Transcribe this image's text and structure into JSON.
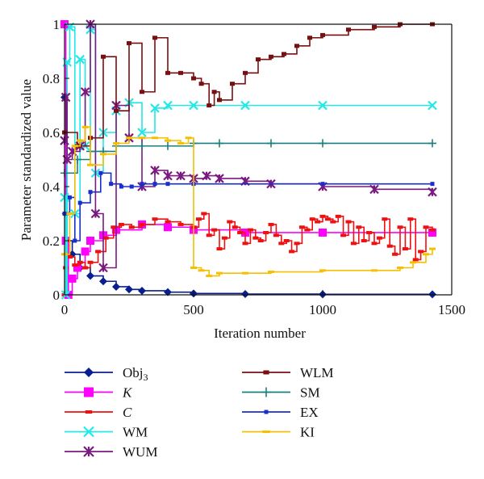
{
  "chart_data": {
    "type": "line",
    "xlabel": "Iteration number",
    "ylabel": "Parameter standardized value",
    "xlim": [
      0,
      1500
    ],
    "ylim": [
      0,
      1
    ],
    "xticks": [
      {
        "v": 0,
        "label": "0"
      },
      {
        "v": 500,
        "label": "500"
      },
      {
        "v": 1000,
        "label": "1000"
      },
      {
        "v": 1500,
        "label": "1500"
      }
    ],
    "yticks": [
      {
        "v": 0,
        "label": "0"
      },
      {
        "v": 0.2,
        "label": "0.2"
      },
      {
        "v": 0.4,
        "label": "0.4"
      },
      {
        "v": 0.6,
        "label": "0.6"
      },
      {
        "v": 0.8,
        "label": "0.8"
      },
      {
        "v": 1,
        "label": "1"
      }
    ],
    "grid": false,
    "legend_position": "below",
    "series": [
      {
        "name": "Obj",
        "sub": "3",
        "italic": false,
        "color": "#0a1f8f",
        "marker": "diamond",
        "x": [
          0,
          5,
          10,
          30,
          60,
          100,
          150,
          200,
          250,
          300,
          400,
          500,
          700,
          1000,
          1425
        ],
        "y": [
          0.73,
          0.3,
          0.2,
          0.15,
          0.1,
          0.07,
          0.05,
          0.03,
          0.02,
          0.015,
          0.01,
          0.005,
          0.003,
          0.002,
          0.002
        ]
      },
      {
        "name": "K",
        "italic": true,
        "color": "#ff00ff",
        "marker": "square",
        "x": [
          0,
          5,
          15,
          30,
          50,
          80,
          100,
          150,
          200,
          300,
          400,
          500,
          700,
          1000,
          1425
        ],
        "y": [
          1.0,
          0.2,
          0.0,
          0.06,
          0.1,
          0.16,
          0.2,
          0.22,
          0.24,
          0.26,
          0.25,
          0.24,
          0.23,
          0.23,
          0.23
        ]
      },
      {
        "name": "C",
        "italic": true,
        "color": "#ee1111",
        "marker": "dash",
        "x": [
          0,
          5,
          10,
          20,
          40,
          60,
          80,
          100,
          130,
          160,
          190,
          220,
          260,
          300,
          350,
          400,
          450,
          500,
          520,
          540,
          560,
          580,
          600,
          620,
          640,
          660,
          680,
          700,
          720,
          740,
          760,
          780,
          800,
          820,
          840,
          860,
          880,
          900,
          920,
          940,
          960,
          980,
          1000,
          1020,
          1040,
          1060,
          1080,
          1100,
          1120,
          1140,
          1160,
          1180,
          1200,
          1220,
          1240,
          1260,
          1280,
          1300,
          1320,
          1340,
          1360,
          1380,
          1400,
          1425
        ],
        "y": [
          0.0,
          0.1,
          0.2,
          0.14,
          0.11,
          0.12,
          0.1,
          0.12,
          0.16,
          0.21,
          0.25,
          0.26,
          0.25,
          0.26,
          0.28,
          0.27,
          0.26,
          0.25,
          0.28,
          0.3,
          0.22,
          0.24,
          0.17,
          0.21,
          0.27,
          0.25,
          0.23,
          0.19,
          0.24,
          0.21,
          0.2,
          0.23,
          0.26,
          0.22,
          0.19,
          0.2,
          0.16,
          0.19,
          0.25,
          0.24,
          0.28,
          0.27,
          0.29,
          0.28,
          0.27,
          0.29,
          0.22,
          0.27,
          0.19,
          0.25,
          0.2,
          0.23,
          0.19,
          0.21,
          0.28,
          0.18,
          0.15,
          0.25,
          0.17,
          0.28,
          0.13,
          0.16,
          0.25,
          0.24
        ]
      },
      {
        "name": "WM",
        "italic": false,
        "color": "#22e8e8",
        "marker": "x",
        "x": [
          0,
          5,
          10,
          20,
          40,
          60,
          80,
          100,
          120,
          150,
          200,
          250,
          300,
          350,
          400,
          500,
          700,
          1000,
          1425
        ],
        "y": [
          0.36,
          0.0,
          0.86,
          0.99,
          0.3,
          0.87,
          0.55,
          0.98,
          0.45,
          0.6,
          0.68,
          0.71,
          0.6,
          0.69,
          0.7,
          0.7,
          0.7,
          0.7,
          0.7
        ]
      },
      {
        "name": "WUM",
        "italic": false,
        "color": "#7a1a80",
        "marker": "asterisk",
        "x": [
          0,
          5,
          10,
          30,
          60,
          80,
          100,
          120,
          150,
          200,
          250,
          300,
          350,
          400,
          450,
          500,
          550,
          600,
          700,
          800,
          1000,
          1200,
          1425
        ],
        "y": [
          0.57,
          0.73,
          0.5,
          0.53,
          0.55,
          0.75,
          1.0,
          0.3,
          0.1,
          0.7,
          0.58,
          0.4,
          0.46,
          0.44,
          0.44,
          0.43,
          0.44,
          0.43,
          0.42,
          0.41,
          0.4,
          0.39,
          0.38
        ]
      },
      {
        "name": "WLM",
        "italic": false,
        "color": "#7a0f12",
        "marker": "bar",
        "x": [
          0,
          50,
          100,
          150,
          200,
          250,
          300,
          350,
          400,
          450,
          500,
          530,
          560,
          580,
          600,
          650,
          700,
          750,
          800,
          850,
          900,
          950,
          1000,
          1100,
          1200,
          1300,
          1425
        ],
        "y": [
          0.6,
          0.55,
          0.58,
          0.88,
          0.68,
          0.93,
          0.75,
          0.95,
          0.82,
          0.82,
          0.8,
          0.78,
          0.7,
          0.75,
          0.72,
          0.78,
          0.82,
          0.87,
          0.88,
          0.89,
          0.92,
          0.95,
          0.96,
          0.98,
          0.99,
          1.0,
          1.0
        ]
      },
      {
        "name": "SM",
        "italic": false,
        "color": "#1a8080",
        "marker": "plus",
        "x": [
          0,
          50,
          100,
          150,
          200,
          300,
          400,
          500,
          600,
          800,
          1000,
          1425
        ],
        "y": [
          0.45,
          0.5,
          0.53,
          0.53,
          0.55,
          0.55,
          0.55,
          0.56,
          0.56,
          0.56,
          0.56,
          0.56
        ]
      },
      {
        "name": "EX",
        "italic": false,
        "color": "#1a2ecc",
        "marker": "dot",
        "x": [
          0,
          20,
          40,
          60,
          100,
          140,
          180,
          220,
          260,
          300,
          350,
          400,
          500,
          1000,
          1425
        ],
        "y": [
          0.3,
          0.36,
          0.2,
          0.34,
          0.38,
          0.45,
          0.41,
          0.4,
          0.4,
          0.41,
          0.41,
          0.41,
          0.41,
          0.41,
          0.41
        ]
      },
      {
        "name": "KI",
        "italic": false,
        "color": "#f5c000",
        "marker": "hline",
        "x": [
          0,
          20,
          40,
          60,
          80,
          100,
          150,
          200,
          250,
          300,
          350,
          400,
          450,
          480,
          500,
          530,
          560,
          600,
          700,
          800,
          1000,
          1200,
          1300,
          1350,
          1400,
          1425
        ],
        "y": [
          0.15,
          0.3,
          0.55,
          0.57,
          0.62,
          0.48,
          0.52,
          0.56,
          0.58,
          0.58,
          0.58,
          0.57,
          0.56,
          0.58,
          0.1,
          0.09,
          0.07,
          0.08,
          0.08,
          0.085,
          0.09,
          0.09,
          0.1,
          0.12,
          0.15,
          0.17
        ]
      }
    ]
  }
}
